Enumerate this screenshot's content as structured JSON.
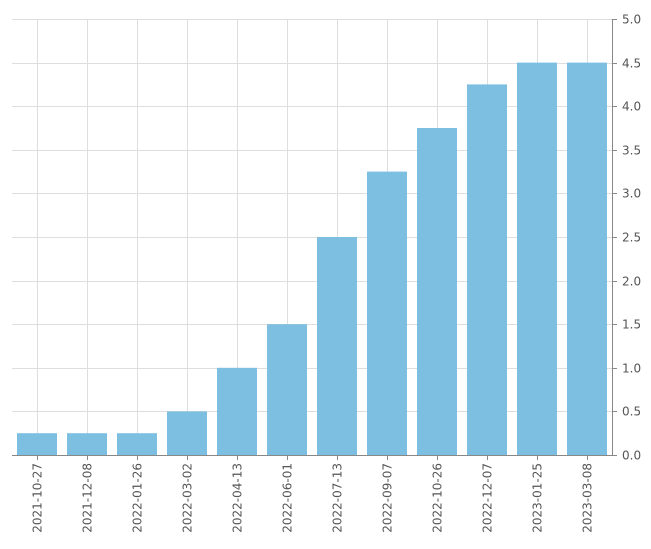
{
  "chart_data": {
    "type": "bar",
    "categories": [
      "2021-10-27",
      "2021-12-08",
      "2022-01-26",
      "2022-03-02",
      "2022-04-13",
      "2022-06-01",
      "2022-07-13",
      "2022-09-07",
      "2022-10-26",
      "2022-12-07",
      "2023-01-25",
      "2023-03-08"
    ],
    "values": [
      0.25,
      0.25,
      0.25,
      0.5,
      1.0,
      1.5,
      2.5,
      3.25,
      3.75,
      4.25,
      4.5,
      4.5
    ],
    "y_ticks": [
      "0.0",
      "0.5",
      "1.0",
      "1.5",
      "2.0",
      "2.5",
      "3.0",
      "3.5",
      "4.0",
      "4.5",
      "5.0"
    ],
    "ylim": [
      0,
      5
    ],
    "y_axis_position": "right",
    "grid": true,
    "bar_color": "#7dbfe1",
    "title": "",
    "xlabel": "",
    "ylabel": ""
  }
}
